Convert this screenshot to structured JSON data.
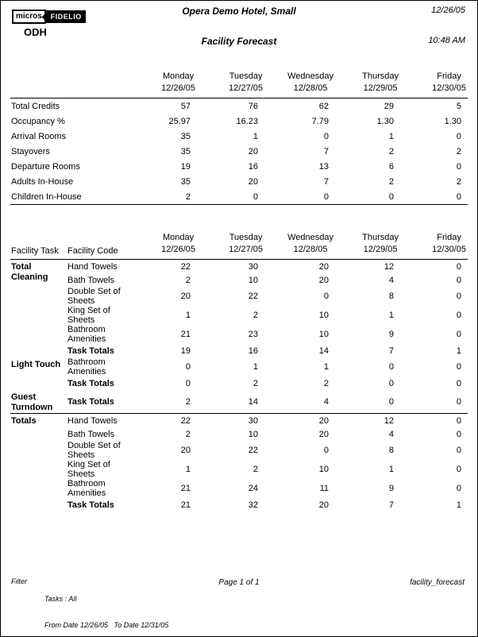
{
  "page": {
    "hotel_name": "Opera Demo Hotel, Small",
    "report_title": "Facility Forecast",
    "print_date": "12/26/05",
    "print_time": "10:48 AM",
    "property_code": "ODH",
    "logo": {
      "left": "micros",
      "right": "FIDELIO"
    }
  },
  "days": [
    {
      "name": "Monday",
      "date": "12/26/05"
    },
    {
      "name": "Tuesday",
      "date": "12/27/05"
    },
    {
      "name": "Wednesday",
      "date": "12/28/05"
    },
    {
      "name": "Thursday",
      "date": "12/29/05"
    },
    {
      "name": "Friday",
      "date": "12/30/05"
    }
  ],
  "summary_table": {
    "rows": [
      {
        "label": "Total Credits",
        "values": [
          "57",
          "76",
          "62",
          "29",
          "5"
        ]
      },
      {
        "label": "Occupancy %",
        "values": [
          "25.97",
          "16.23",
          "7.79",
          "1.30",
          "1.30"
        ]
      },
      {
        "label": "Arrival Rooms",
        "values": [
          "35",
          "1",
          "0",
          "1",
          "0"
        ]
      },
      {
        "label": "Stayovers",
        "values": [
          "35",
          "20",
          "7",
          "2",
          "2"
        ]
      },
      {
        "label": "Departure Rooms",
        "values": [
          "19",
          "16",
          "13",
          "6",
          "0"
        ]
      },
      {
        "label": "Adults In-House",
        "values": [
          "35",
          "20",
          "7",
          "2",
          "2"
        ]
      },
      {
        "label": "Children In-House",
        "values": [
          "2",
          "0",
          "0",
          "0",
          "0"
        ]
      }
    ]
  },
  "facility_table": {
    "task_header": "Facility Task",
    "code_header": "Facility Code",
    "groups": [
      {
        "task": "Total Cleaning",
        "separator_before": false,
        "rows": [
          {
            "code": "Hand Towels",
            "bold": false,
            "values": [
              "22",
              "30",
              "20",
              "12",
              "0"
            ]
          },
          {
            "code": "Bath Towels",
            "bold": false,
            "values": [
              "2",
              "10",
              "20",
              "4",
              "0"
            ]
          },
          {
            "code": "Double Set of Sheets",
            "bold": false,
            "values": [
              "20",
              "22",
              "0",
              "8",
              "0"
            ]
          },
          {
            "code": "King Set of Sheets",
            "bold": false,
            "values": [
              "1",
              "2",
              "10",
              "1",
              "0"
            ]
          },
          {
            "code": "Bathroom Amenities",
            "bold": false,
            "values": [
              "21",
              "23",
              "10",
              "9",
              "0"
            ]
          },
          {
            "code": "Task Totals",
            "bold": true,
            "values": [
              "19",
              "16",
              "14",
              "7",
              "1"
            ]
          }
        ]
      },
      {
        "task": "Light Touch",
        "separator_before": false,
        "rows": [
          {
            "code": "Bathroom Amenities",
            "bold": false,
            "values": [
              "0",
              "1",
              "1",
              "0",
              "0"
            ]
          },
          {
            "code": "Task Totals",
            "bold": true,
            "values": [
              "0",
              "2",
              "2",
              "0",
              "0"
            ]
          }
        ]
      },
      {
        "task": "Guest Turndown",
        "separator_before": false,
        "rows": [
          {
            "code": "Task Totals",
            "bold": true,
            "values": [
              "2",
              "14",
              "4",
              "0",
              "0"
            ]
          }
        ]
      },
      {
        "task": "Totals",
        "separator_before": true,
        "rows": [
          {
            "code": "Hand Towels",
            "bold": false,
            "values": [
              "22",
              "30",
              "20",
              "12",
              "0"
            ]
          },
          {
            "code": "Bath Towels",
            "bold": false,
            "values": [
              "2",
              "10",
              "20",
              "4",
              "0"
            ]
          },
          {
            "code": "Double Set of Sheets",
            "bold": false,
            "values": [
              "20",
              "22",
              "0",
              "8",
              "0"
            ]
          },
          {
            "code": "King Set of Sheets",
            "bold": false,
            "values": [
              "1",
              "2",
              "10",
              "1",
              "0"
            ]
          },
          {
            "code": "Bathroom Amenities",
            "bold": false,
            "values": [
              "21",
              "24",
              "11",
              "9",
              "0"
            ]
          },
          {
            "code": "Task Totals",
            "bold": true,
            "values": [
              "21",
              "32",
              "20",
              "7",
              "1"
            ]
          }
        ]
      }
    ]
  },
  "footer": {
    "filter_label": "Filter",
    "tasks_line": "Tasks : All",
    "date_range_line": "From Date 12/26/05   To Date 12/31/05",
    "page_info": "Page 1 of 1",
    "report_code": "facility_forecast"
  }
}
